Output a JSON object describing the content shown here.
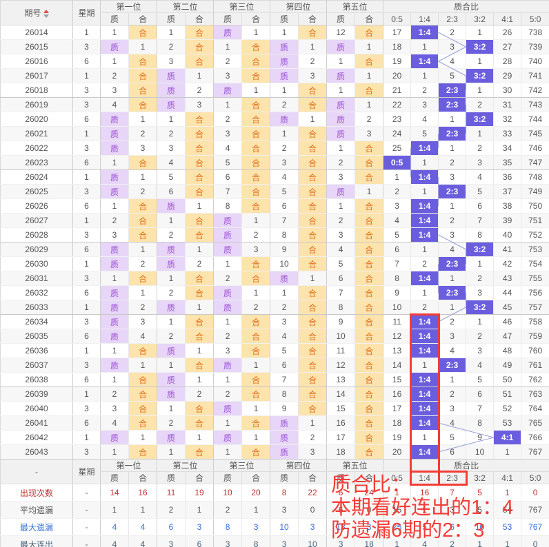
{
  "header": {
    "period": "期号",
    "week": "星期",
    "positions": [
      "第一位",
      "第二位",
      "第三位",
      "第四位",
      "第五位"
    ],
    "prime": "质",
    "composite": "合",
    "ratio_title": "质合比",
    "ratio_cols": [
      "0:5",
      "1:4",
      "2:3",
      "3:2",
      "4:1",
      "5:0"
    ],
    "mid_period_label": "-"
  },
  "colors": {
    "prime_bg": "#e7d6f8",
    "prime_text": "#9a4fd1",
    "composite_bg": "#fde3ac",
    "composite_text": "#e2711d",
    "ratio_hit_bg": "#6b5ede",
    "ratio_hit_text": "#ffffff",
    "connector_line": "#98a0d8",
    "annotation_red": "#f23c36",
    "count_row": "#c03030",
    "avg_miss_row": "#555555",
    "max_miss_row": "#3a6fd8",
    "max_streak_row": "#49617a"
  },
  "chart_data": {
    "type": "table",
    "title": "质合比走势图",
    "note": "rows: period, week, 10 position cells (质/合 hit or miss-count), 6 ratio columns 0:5..5:0"
  },
  "rows": [
    {
      "period": "26014",
      "week": "1",
      "pos": [
        "1",
        "合",
        "1",
        "合",
        "质",
        "1",
        "1",
        "合",
        "12",
        "合"
      ],
      "ratio": [
        "17",
        "1:4",
        "2",
        "1",
        "26",
        "738"
      ]
    },
    {
      "period": "26015",
      "week": "3",
      "pos": [
        "质",
        "1",
        "2",
        "合",
        "1",
        "合",
        "质",
        "1",
        "质",
        "1"
      ],
      "ratio": [
        "18",
        "1",
        "3",
        "3:2",
        "27",
        "739"
      ]
    },
    {
      "period": "26016",
      "week": "6",
      "pos": [
        "1",
        "合",
        "3",
        "合",
        "2",
        "合",
        "质",
        "2",
        "1",
        "合"
      ],
      "ratio": [
        "19",
        "1:4",
        "4",
        "1",
        "28",
        "740"
      ]
    },
    {
      "period": "26017",
      "week": "1",
      "pos": [
        "2",
        "合",
        "质",
        "1",
        "3",
        "合",
        "质",
        "3",
        "质",
        "1"
      ],
      "ratio": [
        "20",
        "1",
        "5",
        "3:2",
        "29",
        "741"
      ]
    },
    {
      "period": "26018",
      "week": "3",
      "pos": [
        "3",
        "合",
        "质",
        "2",
        "质",
        "1",
        "1",
        "合",
        "1",
        "合"
      ],
      "ratio": [
        "21",
        "2",
        "2:3",
        "1",
        "30",
        "742"
      ]
    },
    {
      "period": "26019",
      "week": "3",
      "pos": [
        "4",
        "合",
        "质",
        "3",
        "1",
        "合",
        "2",
        "合",
        "质",
        "1"
      ],
      "ratio": [
        "22",
        "3",
        "2:3",
        "2",
        "31",
        "743"
      ]
    },
    {
      "period": "26020",
      "week": "6",
      "pos": [
        "质",
        "1",
        "1",
        "合",
        "2",
        "合",
        "质",
        "1",
        "质",
        "2"
      ],
      "ratio": [
        "23",
        "4",
        "1",
        "3:2",
        "32",
        "744"
      ]
    },
    {
      "period": "26021",
      "week": "1",
      "pos": [
        "质",
        "2",
        "2",
        "合",
        "3",
        "合",
        "1",
        "合",
        "质",
        "3"
      ],
      "ratio": [
        "24",
        "5",
        "2:3",
        "1",
        "33",
        "745"
      ]
    },
    {
      "period": "26022",
      "week": "3",
      "pos": [
        "质",
        "3",
        "3",
        "合",
        "4",
        "合",
        "2",
        "合",
        "1",
        "合"
      ],
      "ratio": [
        "25",
        "1:4",
        "1",
        "2",
        "34",
        "746"
      ]
    },
    {
      "period": "26023",
      "week": "6",
      "pos": [
        "1",
        "合",
        "4",
        "合",
        "5",
        "合",
        "3",
        "合",
        "2",
        "合"
      ],
      "ratio": [
        "0:5",
        "1",
        "2",
        "3",
        "35",
        "747"
      ]
    },
    {
      "period": "26024",
      "week": "1",
      "pos": [
        "质",
        "1",
        "5",
        "合",
        "6",
        "合",
        "4",
        "合",
        "3",
        "合"
      ],
      "ratio": [
        "1",
        "1:4",
        "3",
        "4",
        "36",
        "748"
      ]
    },
    {
      "period": "26025",
      "week": "3",
      "pos": [
        "质",
        "2",
        "6",
        "合",
        "7",
        "合",
        "5",
        "合",
        "质",
        "1"
      ],
      "ratio": [
        "2",
        "1",
        "2:3",
        "5",
        "37",
        "749"
      ]
    },
    {
      "period": "26026",
      "week": "6",
      "pos": [
        "1",
        "合",
        "质",
        "1",
        "8",
        "合",
        "6",
        "合",
        "1",
        "合"
      ],
      "ratio": [
        "3",
        "1:4",
        "1",
        "6",
        "38",
        "750"
      ]
    },
    {
      "period": "26027",
      "week": "1",
      "pos": [
        "2",
        "合",
        "1",
        "合",
        "质",
        "1",
        "7",
        "合",
        "2",
        "合"
      ],
      "ratio": [
        "4",
        "1:4",
        "2",
        "7",
        "39",
        "751"
      ]
    },
    {
      "period": "26028",
      "week": "3",
      "pos": [
        "3",
        "合",
        "2",
        "合",
        "质",
        "2",
        "8",
        "合",
        "3",
        "合"
      ],
      "ratio": [
        "5",
        "1:4",
        "3",
        "8",
        "40",
        "752"
      ]
    },
    {
      "period": "26029",
      "week": "6",
      "pos": [
        "质",
        "1",
        "质",
        "1",
        "质",
        "3",
        "9",
        "合",
        "4",
        "合"
      ],
      "ratio": [
        "6",
        "1",
        "4",
        "3:2",
        "41",
        "753"
      ]
    },
    {
      "period": "26030",
      "week": "1",
      "pos": [
        "质",
        "2",
        "质",
        "2",
        "1",
        "合",
        "10",
        "合",
        "5",
        "合"
      ],
      "ratio": [
        "7",
        "2",
        "2:3",
        "1",
        "42",
        "754"
      ]
    },
    {
      "period": "26031",
      "week": "3",
      "pos": [
        "1",
        "合",
        "1",
        "合",
        "2",
        "合",
        "质",
        "1",
        "6",
        "合"
      ],
      "ratio": [
        "8",
        "1:4",
        "1",
        "2",
        "43",
        "755"
      ]
    },
    {
      "period": "26032",
      "week": "6",
      "pos": [
        "质",
        "1",
        "2",
        "合",
        "质",
        "1",
        "1",
        "合",
        "7",
        "合"
      ],
      "ratio": [
        "9",
        "1",
        "2:3",
        "3",
        "44",
        "756"
      ]
    },
    {
      "period": "26033",
      "week": "1",
      "pos": [
        "质",
        "2",
        "质",
        "1",
        "质",
        "2",
        "2",
        "合",
        "8",
        "合"
      ],
      "ratio": [
        "10",
        "2",
        "1",
        "3:2",
        "45",
        "757"
      ]
    },
    {
      "period": "26034",
      "week": "3",
      "pos": [
        "质",
        "3",
        "1",
        "合",
        "1",
        "合",
        "3",
        "合",
        "9",
        "合"
      ],
      "ratio": [
        "11",
        "1:4",
        "2",
        "1",
        "46",
        "758"
      ]
    },
    {
      "period": "26035",
      "week": "6",
      "pos": [
        "质",
        "4",
        "2",
        "合",
        "2",
        "合",
        "4",
        "合",
        "10",
        "合"
      ],
      "ratio": [
        "12",
        "1:4",
        "3",
        "2",
        "47",
        "759"
      ]
    },
    {
      "period": "26036",
      "week": "1",
      "pos": [
        "1",
        "合",
        "质",
        "1",
        "3",
        "合",
        "5",
        "合",
        "11",
        "合"
      ],
      "ratio": [
        "13",
        "1:4",
        "4",
        "3",
        "48",
        "760"
      ]
    },
    {
      "period": "26037",
      "week": "3",
      "pos": [
        "质",
        "1",
        "1",
        "合",
        "质",
        "1",
        "6",
        "合",
        "12",
        "合"
      ],
      "ratio": [
        "14",
        "1",
        "2:3",
        "4",
        "49",
        "761"
      ]
    },
    {
      "period": "26038",
      "week": "6",
      "pos": [
        "1",
        "合",
        "质",
        "1",
        "1",
        "合",
        "7",
        "合",
        "13",
        "合"
      ],
      "ratio": [
        "15",
        "1:4",
        "1",
        "5",
        "50",
        "762"
      ]
    },
    {
      "period": "26039",
      "week": "1",
      "pos": [
        "2",
        "合",
        "质",
        "2",
        "2",
        "合",
        "8",
        "合",
        "14",
        "合"
      ],
      "ratio": [
        "16",
        "1:4",
        "2",
        "6",
        "51",
        "763"
      ]
    },
    {
      "period": "26040",
      "week": "3",
      "pos": [
        "3",
        "合",
        "1",
        "合",
        "质",
        "1",
        "9",
        "合",
        "15",
        "合"
      ],
      "ratio": [
        "17",
        "1:4",
        "3",
        "7",
        "52",
        "764"
      ]
    },
    {
      "period": "26041",
      "week": "6",
      "pos": [
        "4",
        "合",
        "2",
        "合",
        "1",
        "合",
        "质",
        "1",
        "16",
        "合"
      ],
      "ratio": [
        "18",
        "1:4",
        "4",
        "8",
        "53",
        "765"
      ]
    },
    {
      "period": "26042",
      "week": "1",
      "pos": [
        "质",
        "1",
        "质",
        "1",
        "质",
        "1",
        "质",
        "2",
        "17",
        "合"
      ],
      "ratio": [
        "19",
        "1",
        "5",
        "9",
        "4:1",
        "766"
      ]
    },
    {
      "period": "26043",
      "week": "3",
      "pos": [
        "1",
        "合",
        "1",
        "合",
        "1",
        "合",
        "质",
        "3",
        "18",
        "合"
      ],
      "ratio": [
        "20",
        "1:4",
        "6",
        "10",
        "1",
        "767"
      ]
    }
  ],
  "summary": [
    {
      "label": "出现次数",
      "week": "-",
      "color": "#c03030",
      "pos": [
        "14",
        "16",
        "11",
        "19",
        "10",
        "20",
        "8",
        "22",
        "6",
        "24"
      ],
      "ratio": [
        "1",
        "16",
        "7",
        "5",
        "1",
        "0"
      ]
    },
    {
      "label": "平均遗漏",
      "week": "-",
      "color": "#555555",
      "pos": [
        "1",
        "1",
        "2",
        "1",
        "2",
        "1",
        "3",
        "0",
        "6",
        "0"
      ],
      "ratio": [
        "15",
        "1",
        "3",
        "5",
        "54",
        "767"
      ]
    },
    {
      "label": "最大遗漏",
      "week": "-",
      "color": "#3a6fd8",
      "pos": [
        "4",
        "4",
        "6",
        "3",
        "8",
        "3",
        "10",
        "3",
        "18",
        "3"
      ],
      "ratio": [
        "25",
        "5",
        "6",
        "10",
        "53",
        "767"
      ]
    },
    {
      "label": "最大连出",
      "week": "-",
      "color": "#49617a",
      "pos": [
        "4",
        "4",
        "3",
        "6",
        "3",
        "8",
        "3",
        "10",
        "3",
        "18"
      ],
      "ratio": [
        "1",
        "4",
        "2",
        "1",
        "1",
        "0"
      ]
    }
  ],
  "annotation": {
    "line1": "质合比：",
    "line2": "本期看好连出的1：4",
    "line3": "防遗漏6期的2：3"
  },
  "highlight_boxes": {
    "column_box_ratio_col": "1:4",
    "header_box_cols": [
      "1:4",
      "2:3"
    ],
    "column_box_start_period": "26034"
  }
}
